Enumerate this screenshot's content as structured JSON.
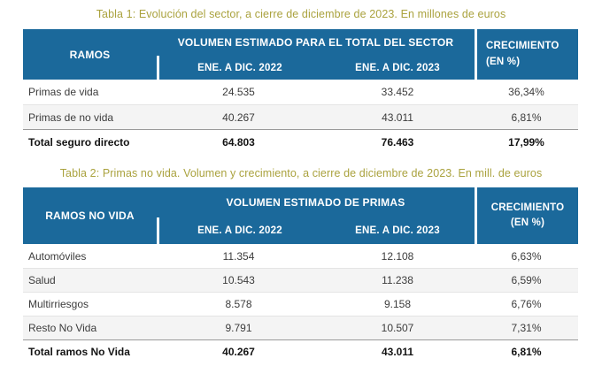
{
  "colors": {
    "title_text": "#aaa23e",
    "header_background": "#1b699b",
    "header_text": "#ffffff",
    "body_text": "#3c3c3c",
    "total_text": "#141414",
    "alt_row_background": "#f4f4f4",
    "row_divider": "#e4e4e4",
    "total_divider": "#9a9a9a"
  },
  "tables": [
    {
      "title": "Tabla 1: Evolución del sector, a cierre de diciembre de 2023. En millones de euros",
      "header": {
        "rows_label": "RAMOS",
        "group_label": "VOLUMEN ESTIMADO PARA EL TOTAL DEL SECTOR",
        "col_2022": "ENE. A DIC. 2022",
        "col_2023": "ENE. A DIC. 2023",
        "growth_label": "CRECIMIENTO",
        "growth_unit": "(EN %)"
      },
      "rows": [
        {
          "label": "Primas de vida",
          "y2022": "24.535",
          "y2023": "33.452",
          "growth": "36,34%"
        },
        {
          "label": "Primas de no vida",
          "y2022": "40.267",
          "y2023": "43.011",
          "growth": "6,81%"
        },
        {
          "label": "Total seguro directo",
          "y2022": "64.803",
          "y2023": "76.463",
          "growth": "17,99%"
        }
      ]
    },
    {
      "title": "Tabla 2: Primas no vida. Volumen y crecimiento, a cierre de diciembre de 2023. En mill. de euros",
      "header": {
        "rows_label": "RAMOS NO VIDA",
        "group_label": "VOLUMEN ESTIMADO DE PRIMAS",
        "col_2022": "ENE. A DIC. 2022",
        "col_2023": "ENE. A DIC. 2023",
        "growth_label": "CRECIMIENTO",
        "growth_unit": "(EN %)"
      },
      "rows": [
        {
          "label": "Automóviles",
          "y2022": "11.354",
          "y2023": "12.108",
          "growth": "6,63%"
        },
        {
          "label": "Salud",
          "y2022": "10.543",
          "y2023": "11.238",
          "growth": "6,59%"
        },
        {
          "label": "Multirriesgos",
          "y2022": "8.578",
          "y2023": "9.158",
          "growth": "6,76%"
        },
        {
          "label": "Resto No Vida",
          "y2022": "9.791",
          "y2023": "10.507",
          "growth": "7,31%"
        },
        {
          "label": "Total ramos No Vida",
          "y2022": "40.267",
          "y2023": "43.011",
          "growth": "6,81%"
        }
      ]
    }
  ]
}
